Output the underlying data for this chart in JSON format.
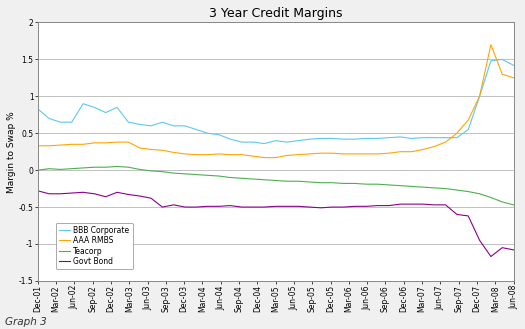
{
  "title": "3 Year Credit Margins",
  "ylabel": "Margin to Swap %",
  "footer": "Graph 3",
  "ylim": [
    -1.5,
    2.0
  ],
  "yticks": [
    -1.5,
    -1.0,
    -0.5,
    0.0,
    0.5,
    1.0,
    1.5,
    2.0
  ],
  "x_labels": [
    "Dec-01",
    "Mar-02",
    "Jun-02",
    "Sep-02",
    "Dec-02",
    "Mar-03",
    "Jun-03",
    "Sep-03",
    "Dec-03",
    "Mar-04",
    "Jun-04",
    "Sep-04",
    "Dec-04",
    "Mar-05",
    "Jun-05",
    "Sep-05",
    "Dec-05",
    "Mar-06",
    "Jun-06",
    "Sep-06",
    "Dec-06",
    "Mar-07",
    "Jun-07",
    "Sep-07",
    "Dec-07",
    "Mar-08",
    "Jun-08"
  ],
  "series": {
    "BBB Corporate": {
      "color": "#5BC8F5",
      "values": [
        0.83,
        0.7,
        0.65,
        0.65,
        0.9,
        0.85,
        0.78,
        0.85,
        0.65,
        0.62,
        0.6,
        0.65,
        0.6,
        0.6,
        0.55,
        0.5,
        0.48,
        0.42,
        0.38,
        0.38,
        0.36,
        0.4,
        0.38,
        0.4,
        0.42,
        0.43,
        0.43,
        0.42,
        0.42,
        0.43,
        0.43,
        0.44,
        0.45,
        0.43,
        0.44,
        0.44,
        0.44,
        0.44,
        0.55,
        1.0,
        1.48,
        1.5,
        1.42
      ]
    },
    "AAA RMBS": {
      "color": "#FFA500",
      "values": [
        0.33,
        0.33,
        0.34,
        0.35,
        0.35,
        0.37,
        0.37,
        0.38,
        0.38,
        0.3,
        0.28,
        0.27,
        0.24,
        0.22,
        0.21,
        0.21,
        0.22,
        0.21,
        0.21,
        0.19,
        0.17,
        0.17,
        0.2,
        0.21,
        0.22,
        0.23,
        0.23,
        0.22,
        0.22,
        0.22,
        0.22,
        0.23,
        0.25,
        0.25,
        0.28,
        0.32,
        0.38,
        0.5,
        0.68,
        1.0,
        1.7,
        1.3,
        1.25
      ]
    },
    "Teacorp": {
      "color": "#4CAF50",
      "values": [
        0.0,
        0.02,
        0.01,
        0.02,
        0.03,
        0.04,
        0.04,
        0.05,
        0.04,
        0.01,
        -0.01,
        -0.02,
        -0.04,
        -0.05,
        -0.06,
        -0.07,
        -0.08,
        -0.1,
        -0.11,
        -0.12,
        -0.13,
        -0.14,
        -0.15,
        -0.15,
        -0.16,
        -0.17,
        -0.17,
        -0.18,
        -0.18,
        -0.19,
        -0.19,
        -0.2,
        -0.21,
        -0.22,
        -0.23,
        -0.24,
        -0.25,
        -0.27,
        -0.29,
        -0.32,
        -0.37,
        -0.43,
        -0.47
      ]
    },
    "Govt Bond": {
      "color": "#8B008B",
      "values": [
        -0.28,
        -0.32,
        -0.32,
        -0.31,
        -0.3,
        -0.32,
        -0.36,
        -0.3,
        -0.33,
        -0.35,
        -0.38,
        -0.5,
        -0.47,
        -0.5,
        -0.5,
        -0.49,
        -0.49,
        -0.48,
        -0.5,
        -0.5,
        -0.5,
        -0.49,
        -0.49,
        -0.49,
        -0.5,
        -0.51,
        -0.5,
        -0.5,
        -0.49,
        -0.49,
        -0.48,
        -0.48,
        -0.46,
        -0.46,
        -0.46,
        -0.47,
        -0.47,
        -0.6,
        -0.62,
        -0.95,
        -1.17,
        -1.05,
        -1.08
      ]
    }
  },
  "background_color": "#F0F0F0",
  "plot_bg_color": "#FFFFFF",
  "grid_color": "#AAAAAA",
  "border_color": "#888888",
  "title_fontsize": 9,
  "label_fontsize": 6.5,
  "tick_fontsize": 5.5,
  "legend_fontsize": 5.5,
  "footer_fontsize": 7.5
}
